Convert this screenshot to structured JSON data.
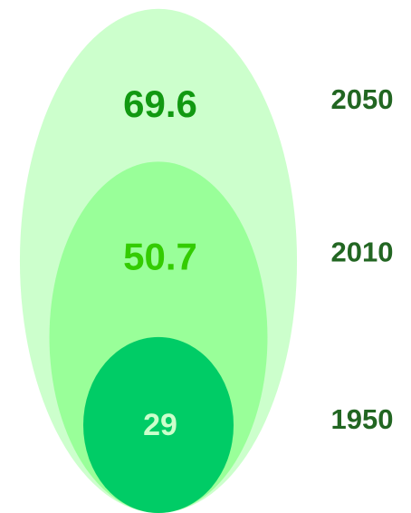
{
  "chart_data": {
    "type": "nested-ellipse",
    "categories": [
      "2050",
      "2010",
      "1950"
    ],
    "values": [
      69.6,
      50.7,
      29
    ],
    "colors": [
      "#ccffcc",
      "#99ff99",
      "#00cc66"
    ],
    "label_colors": [
      "#119911",
      "#33cc00",
      "#ccffcc"
    ],
    "category_label_color": "#226622"
  }
}
